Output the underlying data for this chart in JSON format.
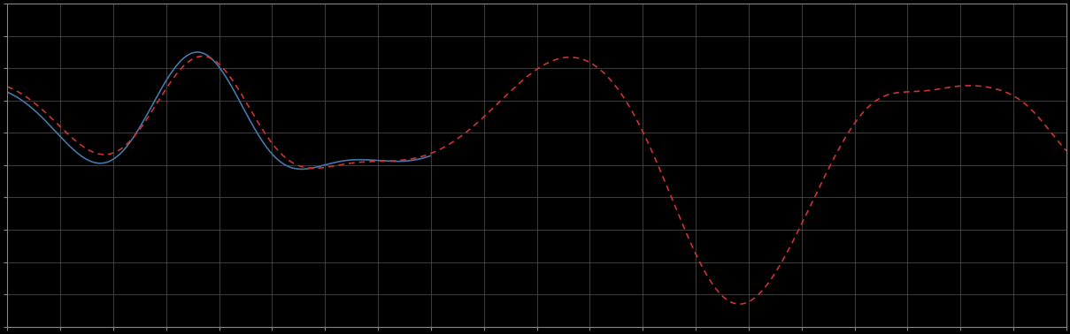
{
  "background_color": "#000000",
  "plot_bg_color": "#000000",
  "grid_color": "#555555",
  "blue_line_color": "#4477aa",
  "red_line_color": "#cc3333",
  "figsize": [
    12.09,
    3.78
  ],
  "dpi": 100,
  "xlim": [
    0,
    100
  ],
  "ylim": [
    0,
    10
  ],
  "spine_color": "#888888"
}
